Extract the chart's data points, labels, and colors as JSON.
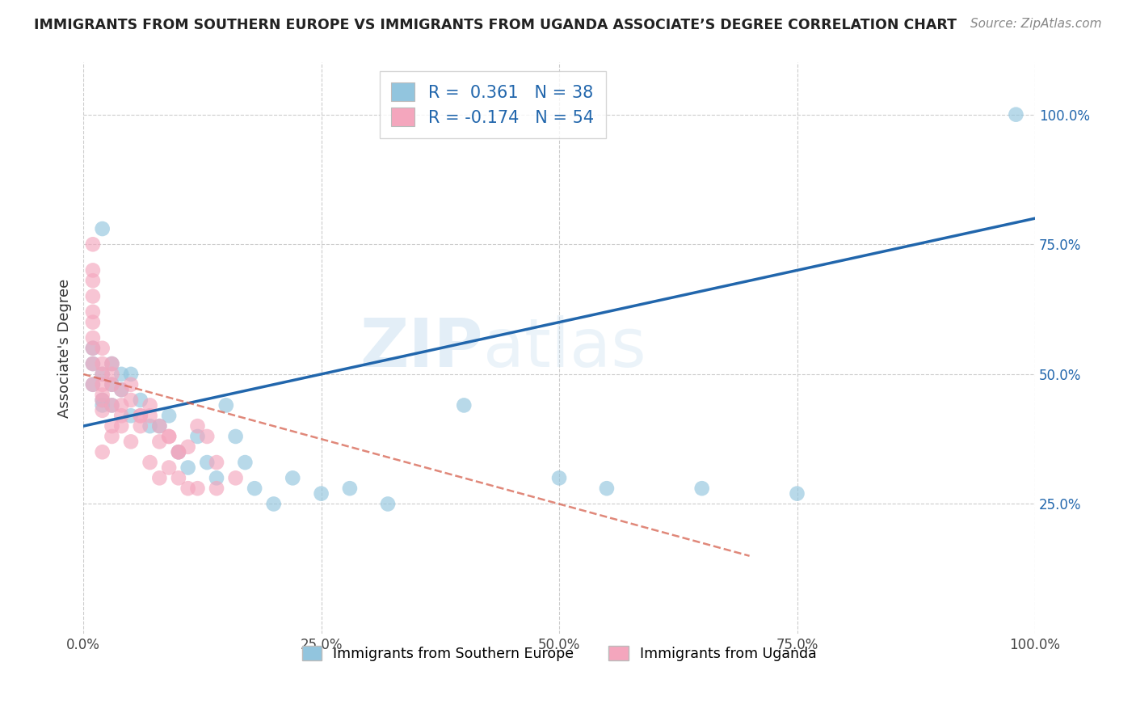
{
  "title": "IMMIGRANTS FROM SOUTHERN EUROPE VS IMMIGRANTS FROM UGANDA ASSOCIATE’S DEGREE CORRELATION CHART",
  "source": "Source: ZipAtlas.com",
  "ylabel": "Associate's Degree",
  "legend_label_blue": "Immigrants from Southern Europe",
  "legend_label_pink": "Immigrants from Uganda",
  "R_blue": 0.361,
  "N_blue": 38,
  "R_pink": -0.174,
  "N_pink": 54,
  "blue_color": "#92c5de",
  "pink_color": "#f4a6bd",
  "line_blue_color": "#2166ac",
  "line_pink_color": "#d6604d",
  "watermark_zip": "ZIP",
  "watermark_atlas": "atlas",
  "blue_dots": [
    [
      1,
      55
    ],
    [
      2,
      78
    ],
    [
      1,
      52
    ],
    [
      2,
      50
    ],
    [
      3,
      52
    ],
    [
      1,
      48
    ],
    [
      2,
      45
    ],
    [
      3,
      48
    ],
    [
      4,
      50
    ],
    [
      2,
      44
    ],
    [
      3,
      44
    ],
    [
      4,
      47
    ],
    [
      5,
      42
    ],
    [
      6,
      45
    ],
    [
      7,
      40
    ],
    [
      5,
      50
    ],
    [
      8,
      40
    ],
    [
      9,
      42
    ],
    [
      10,
      35
    ],
    [
      11,
      32
    ],
    [
      12,
      38
    ],
    [
      13,
      33
    ],
    [
      14,
      30
    ],
    [
      15,
      44
    ],
    [
      16,
      38
    ],
    [
      17,
      33
    ],
    [
      18,
      28
    ],
    [
      20,
      25
    ],
    [
      22,
      30
    ],
    [
      25,
      27
    ],
    [
      28,
      28
    ],
    [
      32,
      25
    ],
    [
      40,
      44
    ],
    [
      50,
      30
    ],
    [
      55,
      28
    ],
    [
      65,
      28
    ],
    [
      75,
      27
    ],
    [
      98,
      100
    ]
  ],
  "pink_dots": [
    [
      1,
      75
    ],
    [
      1,
      70
    ],
    [
      1,
      68
    ],
    [
      1,
      65
    ],
    [
      1,
      62
    ],
    [
      1,
      60
    ],
    [
      1,
      57
    ],
    [
      1,
      55
    ],
    [
      1,
      52
    ],
    [
      2,
      55
    ],
    [
      2,
      52
    ],
    [
      2,
      50
    ],
    [
      1,
      48
    ],
    [
      2,
      48
    ],
    [
      2,
      45
    ],
    [
      2,
      43
    ],
    [
      3,
      52
    ],
    [
      3,
      50
    ],
    [
      3,
      48
    ],
    [
      2,
      46
    ],
    [
      3,
      44
    ],
    [
      4,
      44
    ],
    [
      4,
      42
    ],
    [
      3,
      40
    ],
    [
      4,
      47
    ],
    [
      5,
      45
    ],
    [
      6,
      42
    ],
    [
      5,
      48
    ],
    [
      6,
      40
    ],
    [
      7,
      44
    ],
    [
      7,
      42
    ],
    [
      8,
      37
    ],
    [
      8,
      40
    ],
    [
      9,
      38
    ],
    [
      10,
      35
    ],
    [
      9,
      38
    ],
    [
      11,
      36
    ],
    [
      12,
      40
    ],
    [
      10,
      35
    ],
    [
      13,
      38
    ],
    [
      14,
      33
    ],
    [
      6,
      42
    ],
    [
      3,
      38
    ],
    [
      2,
      35
    ],
    [
      4,
      40
    ],
    [
      5,
      37
    ],
    [
      7,
      33
    ],
    [
      8,
      30
    ],
    [
      9,
      32
    ],
    [
      10,
      30
    ],
    [
      11,
      28
    ],
    [
      12,
      28
    ],
    [
      14,
      28
    ],
    [
      16,
      30
    ]
  ],
  "blue_line": [
    0,
    100
  ],
  "blue_line_y": [
    40,
    80
  ],
  "pink_line": [
    0,
    40
  ],
  "pink_line_y": [
    50,
    30
  ],
  "xmin": 0,
  "xmax": 100,
  "ymin": 0,
  "ymax": 110,
  "xticks": [
    0,
    25,
    50,
    75,
    100
  ],
  "yticks": [
    25,
    50,
    75,
    100
  ],
  "xtick_labels": [
    "0.0%",
    "25.0%",
    "50.0%",
    "75.0%",
    "100.0%"
  ],
  "ytick_labels": [
    "25.0%",
    "50.0%",
    "75.0%",
    "100.0%"
  ],
  "grid_color": "#cccccc",
  "bg_color": "#ffffff"
}
